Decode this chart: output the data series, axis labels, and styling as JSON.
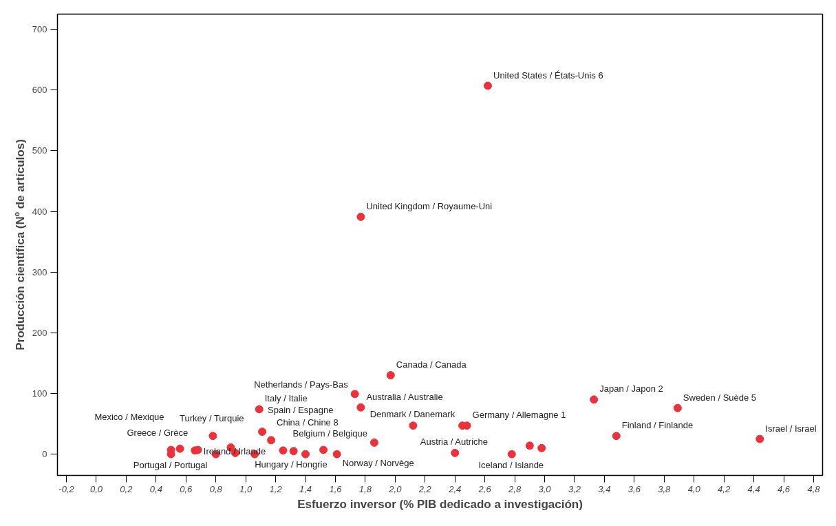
{
  "chart_data": {
    "type": "scatter",
    "xlabel": "Esfuerzo inversor (% PIB dedicado a investigación)",
    "ylabel": "Producción científica (Nº de artículos)",
    "xlim": [
      -0.26,
      4.86
    ],
    "ylim": [
      -35,
      725
    ],
    "xticks": [
      {
        "value": -0.2,
        "label": "-0,2"
      },
      {
        "value": 0.0,
        "label": "0,0"
      },
      {
        "value": 0.2,
        "label": "0,2"
      },
      {
        "value": 0.4,
        "label": "0,4"
      },
      {
        "value": 0.6,
        "label": "0,6"
      },
      {
        "value": 0.8,
        "label": "0,8"
      },
      {
        "value": 1.0,
        "label": "1,0"
      },
      {
        "value": 1.2,
        "label": "1,2"
      },
      {
        "value": 1.4,
        "label": "1,4"
      },
      {
        "value": 1.6,
        "label": "1,6"
      },
      {
        "value": 1.8,
        "label": "1,8"
      },
      {
        "value": 2.0,
        "label": "2,0"
      },
      {
        "value": 2.2,
        "label": "2,2"
      },
      {
        "value": 2.4,
        "label": "2,4"
      },
      {
        "value": 2.6,
        "label": "2,6"
      },
      {
        "value": 2.8,
        "label": "2,8"
      },
      {
        "value": 3.0,
        "label": "3,0"
      },
      {
        "value": 3.2,
        "label": "3,2"
      },
      {
        "value": 3.4,
        "label": "3,4"
      },
      {
        "value": 3.6,
        "label": "3,6"
      },
      {
        "value": 3.8,
        "label": "3,8"
      },
      {
        "value": 4.0,
        "label": "4,0"
      },
      {
        "value": 4.2,
        "label": "4,2"
      },
      {
        "value": 4.4,
        "label": "4,4"
      },
      {
        "value": 4.6,
        "label": "4,6"
      },
      {
        "value": 4.8,
        "label": "4,8"
      }
    ],
    "yticks": [
      0,
      100,
      200,
      300,
      400,
      500,
      600,
      700
    ],
    "grid": false,
    "marker": "circle",
    "series": [
      {
        "color": "#e8323c",
        "x": [
          2.62,
          1.77,
          1.97,
          1.73,
          1.77,
          1.09,
          3.33,
          3.89,
          3.48,
          4.44,
          2.12,
          2.48,
          2.45,
          1.86,
          2.4,
          2.78,
          2.9,
          2.98,
          1.11,
          0.78,
          1.17,
          0.5,
          0.5,
          0.56,
          0.66,
          0.68,
          0.8,
          0.9,
          0.93,
          1.06,
          1.25,
          1.32,
          1.4,
          1.52,
          1.61
        ],
        "values": [
          607,
          391,
          130,
          99,
          77,
          74,
          90,
          76,
          30,
          25,
          47,
          47,
          47,
          19,
          2,
          0,
          14,
          10,
          37,
          30,
          23,
          7,
          0,
          9,
          6,
          7,
          0,
          11,
          2,
          0,
          6,
          5,
          0,
          7,
          0
        ],
        "value_labels": [
          "United States / États-Unis 6",
          "United Kingdom / Royaume-Uni",
          "Canada / Canada",
          "Netherlands / Pays-Bas",
          "Australia / Australie",
          "Italy / Italie",
          "Japan / Japon 2",
          "Sweden / Suède 5",
          "Finland / Finlande",
          "Israel / Israel",
          "Denmark / Danemark",
          "Germany / Allemagne 1",
          null,
          "Belgium / Belgique",
          "Austria / Autriche",
          "Iceland / Islande",
          null,
          null,
          "Spain / Espagne",
          "Turkey / Turquie",
          "China / Chine 8",
          "Mexico / Mexique",
          "Portugal / Portugal",
          null,
          "Greece / Grèce",
          null,
          null,
          null,
          "Ireland / Irlande",
          "Hungary / Hongrie",
          null,
          null,
          null,
          null,
          "Norway / Norvège"
        ]
      }
    ]
  }
}
